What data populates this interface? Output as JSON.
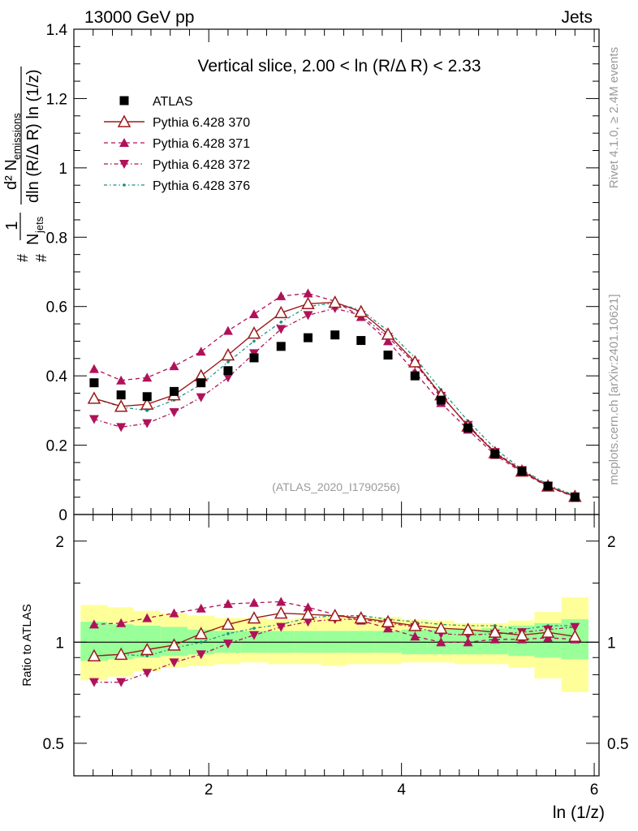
{
  "header": {
    "left": "13000 GeV pp",
    "right": "Jets"
  },
  "side_texts": {
    "rivet": "Rivet 4.1.0, ≥ 2.4M events",
    "mcplots": "mcplots.cern.ch [arXiv:2401.10621]"
  },
  "main_plot": {
    "title": "Vertical slice, 2.00 < ln (R/Δ R) < 2.33",
    "watermark": "(ATLAS_2020_I1790256)",
    "ylabel": {
      "num": "d² N",
      "num_sub": "emissions",
      "den": "dln (R/Δ R) ln (1/z)",
      "prefix_num": "1",
      "prefix_den": "N",
      "prefix_den_sub": "jets",
      "hash": "#"
    },
    "yticks": [
      "0",
      "0.2",
      "0.4",
      "0.6",
      "0.8",
      "1",
      "1.2",
      "1.4"
    ]
  },
  "ratio_plot": {
    "ylabel": "Ratio to ATLAS",
    "yticks_left": [
      "0.5",
      "1",
      "2"
    ],
    "yticks_right": [
      "0.5",
      "1",
      "2"
    ]
  },
  "xaxis": {
    "label": "ln (1/z)",
    "ticks": [
      "2",
      "4",
      "6"
    ]
  },
  "legend": [
    {
      "label": "ATLAS"
    },
    {
      "label": "Pythia 6.428 370"
    },
    {
      "label": "Pythia 6.428 371"
    },
    {
      "label": "Pythia 6.428 372"
    },
    {
      "label": "Pythia 6.428 376"
    }
  ],
  "colors": {
    "atlas": "#000000",
    "p370": "#9b1b1b",
    "p371": "#b0125a",
    "p372": "#b0125a",
    "p376": "#1b8f80",
    "band_green": "#99ff99",
    "band_yellow": "#ffff99"
  },
  "chart_data": {
    "type": "line",
    "x": [
      0.81,
      1.09,
      1.36,
      1.64,
      1.92,
      2.2,
      2.47,
      2.75,
      3.03,
      3.31,
      3.58,
      3.86,
      4.14,
      4.41,
      4.69,
      4.97,
      5.25,
      5.52,
      5.8
    ],
    "x_edges": [
      0.67,
      0.95,
      1.22,
      1.5,
      1.78,
      2.06,
      2.33,
      2.61,
      2.89,
      3.17,
      3.44,
      3.72,
      4.0,
      4.27,
      4.55,
      4.83,
      5.11,
      5.38,
      5.66,
      5.94
    ],
    "xlim": [
      0.6,
      6.05
    ],
    "main_ylim": [
      0,
      1.4
    ],
    "ratio_ylim": [
      0.4,
      2.4
    ],
    "ratio_scale": "log",
    "series": [
      {
        "name": "ATLAS",
        "values": [
          0.38,
          0.345,
          0.34,
          0.355,
          0.38,
          0.415,
          0.452,
          0.485,
          0.51,
          0.518,
          0.502,
          0.46,
          0.4,
          0.33,
          0.25,
          0.175,
          0.125,
          0.082,
          0.05
        ]
      },
      {
        "name": "Pythia 6.428 370",
        "values": [
          0.335,
          0.312,
          0.318,
          0.345,
          0.4,
          0.46,
          0.523,
          0.582,
          0.608,
          0.612,
          0.585,
          0.52,
          0.44,
          0.345,
          0.255,
          0.178,
          0.125,
          0.082,
          0.052
        ]
      },
      {
        "name": "Pythia 6.428 371",
        "values": [
          0.42,
          0.387,
          0.395,
          0.428,
          0.47,
          0.53,
          0.578,
          0.63,
          0.638,
          0.615,
          0.57,
          0.5,
          0.41,
          0.322,
          0.245,
          0.172,
          0.122,
          0.08,
          0.05
        ]
      },
      {
        "name": "Pythia 6.428 372",
        "values": [
          0.275,
          0.252,
          0.263,
          0.295,
          0.338,
          0.395,
          0.465,
          0.535,
          0.575,
          0.595,
          0.575,
          0.512,
          0.435,
          0.342,
          0.258,
          0.18,
          0.128,
          0.082,
          0.052
        ]
      },
      {
        "name": "Pythia 6.428 376",
        "values": [
          0.335,
          0.31,
          0.3,
          0.33,
          0.375,
          0.44,
          0.5,
          0.555,
          0.6,
          0.61,
          0.59,
          0.53,
          0.452,
          0.36,
          0.27,
          0.19,
          0.13,
          0.086,
          0.055
        ]
      }
    ],
    "ratio_series": [
      {
        "name": "Pythia 6.428 370",
        "values": [
          0.91,
          0.92,
          0.95,
          0.98,
          1.06,
          1.13,
          1.18,
          1.22,
          1.21,
          1.2,
          1.18,
          1.15,
          1.12,
          1.1,
          1.09,
          1.07,
          1.05,
          1.07,
          1.04
        ]
      },
      {
        "name": "Pythia 6.428 371",
        "values": [
          1.13,
          1.14,
          1.18,
          1.22,
          1.26,
          1.3,
          1.31,
          1.32,
          1.27,
          1.21,
          1.16,
          1.1,
          1.04,
          1.0,
          1.0,
          1.02,
          1.02,
          1.03,
          1.02
        ]
      },
      {
        "name": "Pythia 6.428 372",
        "values": [
          0.76,
          0.76,
          0.81,
          0.87,
          0.92,
          0.99,
          1.05,
          1.11,
          1.15,
          1.17,
          1.17,
          1.14,
          1.11,
          1.06,
          1.05,
          1.06,
          1.07,
          1.09,
          1.11
        ]
      },
      {
        "name": "Pythia 6.428 376",
        "values": [
          0.91,
          0.92,
          0.91,
          0.96,
          1.0,
          1.06,
          1.1,
          1.13,
          1.18,
          1.2,
          1.2,
          1.17,
          1.15,
          1.13,
          1.12,
          1.12,
          1.09,
          1.12,
          1.12
        ]
      }
    ],
    "band_green": {
      "lo": [
        0.88,
        0.89,
        0.9,
        0.91,
        0.92,
        0.93,
        0.93,
        0.93,
        0.93,
        0.93,
        0.93,
        0.93,
        0.92,
        0.92,
        0.92,
        0.92,
        0.91,
        0.9,
        0.89
      ],
      "hi": [
        1.15,
        1.13,
        1.12,
        1.11,
        1.09,
        1.08,
        1.08,
        1.08,
        1.08,
        1.08,
        1.08,
        1.08,
        1.09,
        1.09,
        1.09,
        1.1,
        1.12,
        1.14,
        1.17
      ]
    },
    "band_yellow": {
      "lo": [
        0.77,
        0.79,
        0.82,
        0.84,
        0.85,
        0.86,
        0.87,
        0.86,
        0.86,
        0.85,
        0.86,
        0.86,
        0.87,
        0.87,
        0.86,
        0.86,
        0.84,
        0.78,
        0.71
      ],
      "hi": [
        1.29,
        1.27,
        1.24,
        1.22,
        1.2,
        1.18,
        1.18,
        1.17,
        1.18,
        1.2,
        1.19,
        1.19,
        1.17,
        1.16,
        1.14,
        1.14,
        1.16,
        1.23,
        1.36
      ]
    }
  }
}
